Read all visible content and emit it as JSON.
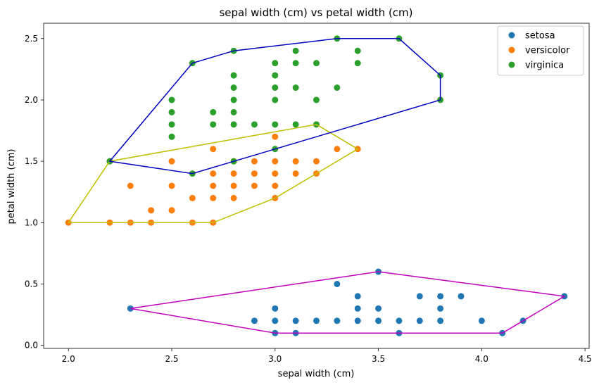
{
  "chart_data": {
    "type": "scatter",
    "title": "sepal width (cm) vs petal width (cm)",
    "xlabel": "sepal width (cm)",
    "ylabel": "petal width (cm)",
    "xlim": [
      1.88,
      4.52
    ],
    "ylim": [
      -0.025,
      2.625
    ],
    "xticks": [
      "2.0",
      "2.5",
      "3.0",
      "3.5",
      "4.0",
      "4.5"
    ],
    "yticks": [
      "0.0",
      "0.5",
      "1.0",
      "1.5",
      "2.0",
      "2.5"
    ],
    "legend_position": "top-right",
    "grid": false,
    "series": [
      {
        "name": "setosa",
        "color": "#1f77b4",
        "hull_color": "#bf00bf",
        "points": [
          [
            2.3,
            0.3
          ],
          [
            2.9,
            0.2
          ],
          [
            3.0,
            0.1
          ],
          [
            3.0,
            0.2
          ],
          [
            3.0,
            0.3
          ],
          [
            3.1,
            0.1
          ],
          [
            3.1,
            0.2
          ],
          [
            3.2,
            0.2
          ],
          [
            3.3,
            0.2
          ],
          [
            3.3,
            0.5
          ],
          [
            3.4,
            0.2
          ],
          [
            3.4,
            0.3
          ],
          [
            3.4,
            0.4
          ],
          [
            3.5,
            0.2
          ],
          [
            3.5,
            0.3
          ],
          [
            3.5,
            0.6
          ],
          [
            3.6,
            0.1
          ],
          [
            3.6,
            0.2
          ],
          [
            3.7,
            0.2
          ],
          [
            3.7,
            0.4
          ],
          [
            3.8,
            0.2
          ],
          [
            3.8,
            0.3
          ],
          [
            3.8,
            0.4
          ],
          [
            3.9,
            0.4
          ],
          [
            4.0,
            0.2
          ],
          [
            4.1,
            0.1
          ],
          [
            4.2,
            0.2
          ],
          [
            4.4,
            0.4
          ]
        ],
        "hull": [
          [
            2.3,
            0.3
          ],
          [
            3.0,
            0.1
          ],
          [
            4.1,
            0.1
          ],
          [
            4.2,
            0.2
          ],
          [
            4.4,
            0.4
          ],
          [
            3.5,
            0.6
          ]
        ]
      },
      {
        "name": "versicolor",
        "color": "#ff7f0e",
        "hull_color": "#bfbf00",
        "points": [
          [
            2.0,
            1.0
          ],
          [
            2.2,
            1.0
          ],
          [
            2.2,
            1.5
          ],
          [
            2.3,
            1.0
          ],
          [
            2.3,
            1.3
          ],
          [
            2.4,
            1.0
          ],
          [
            2.4,
            1.1
          ],
          [
            2.5,
            1.1
          ],
          [
            2.5,
            1.3
          ],
          [
            2.5,
            1.5
          ],
          [
            2.6,
            1.0
          ],
          [
            2.6,
            1.2
          ],
          [
            2.7,
            1.0
          ],
          [
            2.7,
            1.2
          ],
          [
            2.7,
            1.3
          ],
          [
            2.7,
            1.4
          ],
          [
            2.7,
            1.6
          ],
          [
            2.8,
            1.2
          ],
          [
            2.8,
            1.3
          ],
          [
            2.8,
            1.4
          ],
          [
            2.8,
            1.5
          ],
          [
            2.9,
            1.3
          ],
          [
            2.9,
            1.4
          ],
          [
            2.9,
            1.5
          ],
          [
            3.0,
            1.2
          ],
          [
            3.0,
            1.3
          ],
          [
            3.0,
            1.4
          ],
          [
            3.0,
            1.5
          ],
          [
            3.0,
            1.7
          ],
          [
            3.1,
            1.4
          ],
          [
            3.1,
            1.5
          ],
          [
            3.2,
            1.4
          ],
          [
            3.2,
            1.5
          ],
          [
            3.2,
            1.8
          ],
          [
            3.3,
            1.6
          ],
          [
            3.4,
            1.6
          ]
        ],
        "hull": [
          [
            2.0,
            1.0
          ],
          [
            2.7,
            1.0
          ],
          [
            3.0,
            1.2
          ],
          [
            3.2,
            1.4
          ],
          [
            3.4,
            1.6
          ],
          [
            3.2,
            1.8
          ],
          [
            2.2,
            1.5
          ]
        ]
      },
      {
        "name": "virginica",
        "color": "#2ca02c",
        "hull_color": "#0000bf",
        "points": [
          [
            2.2,
            1.5
          ],
          [
            2.5,
            1.7
          ],
          [
            2.5,
            1.8
          ],
          [
            2.5,
            1.9
          ],
          [
            2.5,
            2.0
          ],
          [
            2.6,
            1.4
          ],
          [
            2.6,
            2.3
          ],
          [
            2.7,
            1.8
          ],
          [
            2.7,
            1.9
          ],
          [
            2.8,
            1.5
          ],
          [
            2.8,
            1.8
          ],
          [
            2.8,
            1.9
          ],
          [
            2.8,
            2.0
          ],
          [
            2.8,
            2.1
          ],
          [
            2.8,
            2.2
          ],
          [
            2.8,
            2.4
          ],
          [
            2.9,
            1.8
          ],
          [
            3.0,
            1.6
          ],
          [
            3.0,
            1.8
          ],
          [
            3.0,
            2.0
          ],
          [
            3.0,
            2.1
          ],
          [
            3.0,
            2.2
          ],
          [
            3.0,
            2.3
          ],
          [
            3.1,
            1.8
          ],
          [
            3.1,
            2.1
          ],
          [
            3.1,
            2.3
          ],
          [
            3.1,
            2.4
          ],
          [
            3.2,
            1.8
          ],
          [
            3.2,
            2.0
          ],
          [
            3.2,
            2.3
          ],
          [
            3.3,
            2.1
          ],
          [
            3.3,
            2.5
          ],
          [
            3.4,
            2.3
          ],
          [
            3.4,
            2.4
          ],
          [
            3.6,
            2.5
          ],
          [
            3.8,
            2.0
          ],
          [
            3.8,
            2.2
          ]
        ],
        "hull": [
          [
            2.2,
            1.5
          ],
          [
            2.6,
            1.4
          ],
          [
            3.8,
            2.0
          ],
          [
            3.8,
            2.2
          ],
          [
            3.6,
            2.5
          ],
          [
            3.3,
            2.5
          ],
          [
            2.8,
            2.4
          ],
          [
            2.6,
            2.3
          ]
        ]
      }
    ]
  }
}
